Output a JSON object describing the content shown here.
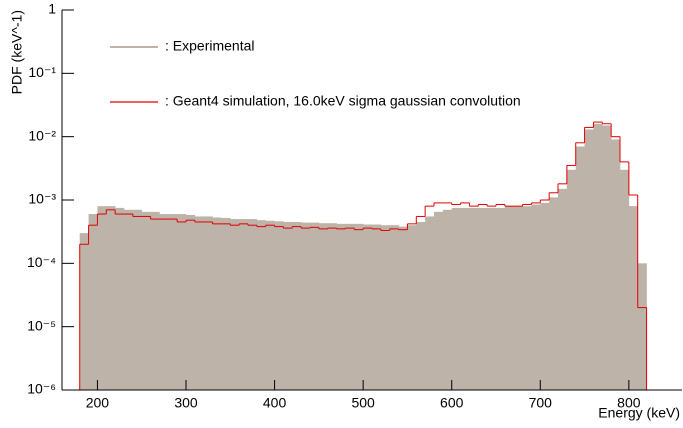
{
  "chart_data": {
    "type": "histogram",
    "y_label": "PDF (keV^-1)",
    "x_label": "Energy (keV)",
    "bins": [
      180,
      190,
      200,
      210,
      220,
      230,
      240,
      250,
      260,
      270,
      280,
      290,
      300,
      310,
      320,
      330,
      340,
      350,
      360,
      370,
      380,
      390,
      400,
      410,
      420,
      430,
      440,
      450,
      460,
      470,
      480,
      490,
      500,
      510,
      520,
      530,
      540,
      550,
      560,
      570,
      580,
      590,
      600,
      610,
      620,
      630,
      640,
      650,
      660,
      670,
      680,
      690,
      700,
      710,
      720,
      730,
      740,
      750,
      760,
      770,
      780,
      790,
      800,
      810,
      820
    ],
    "series": [
      {
        "name": ": Experimental",
        "color": "#bdb3a8",
        "values": [
          0.0003,
          0.0006,
          0.0008,
          0.0008,
          0.00075,
          0.0007,
          0.0007,
          0.00065,
          0.00065,
          0.0006,
          0.0006,
          0.0006,
          0.00058,
          0.00055,
          0.00055,
          0.00053,
          0.00052,
          0.0005,
          0.0005,
          0.0005,
          0.00048,
          0.00047,
          0.00046,
          0.00045,
          0.00045,
          0.00044,
          0.00044,
          0.00043,
          0.00043,
          0.00042,
          0.00042,
          0.00042,
          0.00041,
          0.00041,
          0.0004,
          0.0004,
          0.00038,
          0.0004,
          0.00045,
          0.00055,
          0.00065,
          0.0007,
          0.00075,
          0.00075,
          0.00075,
          0.00075,
          0.00075,
          0.00075,
          0.0008,
          0.0008,
          0.0008,
          0.00085,
          0.0009,
          0.0011,
          0.0015,
          0.003,
          0.007,
          0.013,
          0.016,
          0.015,
          0.009,
          0.003,
          0.0008,
          0.0001
        ]
      },
      {
        "name": ": Geant4 simulation, 16.0keV sigma gaussian convolution",
        "color": "#e00000",
        "values": [
          0.0002,
          0.0004,
          0.0006,
          0.0007,
          0.0006,
          0.0006,
          0.00055,
          0.00055,
          0.0005,
          0.0005,
          0.0005,
          0.00045,
          0.00048,
          0.00045,
          0.00045,
          0.00042,
          0.00042,
          0.0004,
          0.00042,
          0.0004,
          0.00038,
          0.0004,
          0.00038,
          0.00036,
          0.00038,
          0.00036,
          0.00037,
          0.00035,
          0.00036,
          0.00035,
          0.00036,
          0.00034,
          0.00036,
          0.00035,
          0.00033,
          0.00035,
          0.00034,
          0.00042,
          0.00055,
          0.0008,
          0.0009,
          0.0009,
          0.00085,
          0.0009,
          0.0008,
          0.00085,
          0.0008,
          0.00085,
          0.0008,
          0.0008,
          0.00085,
          0.0009,
          0.001,
          0.0013,
          0.0018,
          0.0035,
          0.008,
          0.014,
          0.017,
          0.016,
          0.01,
          0.004,
          0.0012,
          2e-05
        ]
      }
    ],
    "xlim": [
      160,
      860
    ],
    "xticks": [
      200,
      300,
      400,
      500,
      600,
      700,
      800
    ],
    "ylim": [
      1e-06,
      1
    ],
    "yticks": [
      {
        "value": 1e-06,
        "label": "10⁻⁶"
      },
      {
        "value": 1e-05,
        "label": "10⁻⁵"
      },
      {
        "value": 0.0001,
        "label": "10⁻⁴"
      },
      {
        "value": 0.001,
        "label": "10⁻³"
      },
      {
        "value": 0.01,
        "label": "10⁻²"
      },
      {
        "value": 0.1,
        "label": "10⁻¹"
      },
      1
    ],
    "log_y": true
  }
}
